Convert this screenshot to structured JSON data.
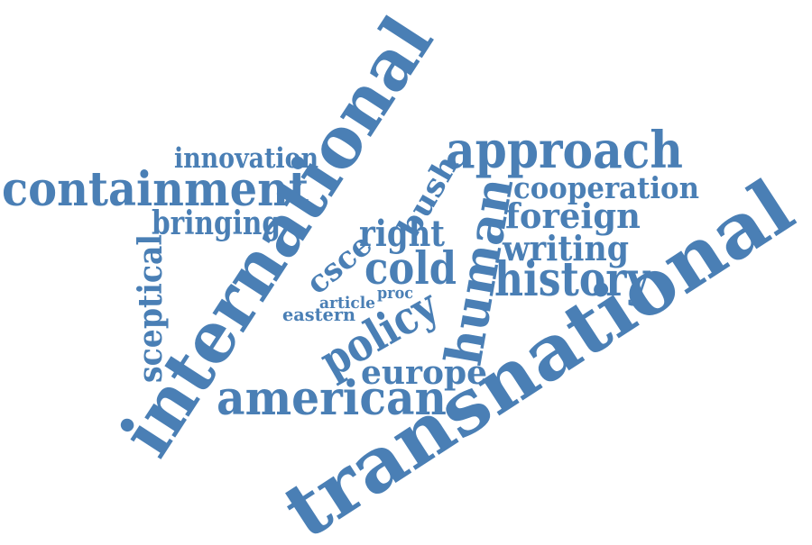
{
  "word_color": "#4a7fb5",
  "words": {
    "transnational": "transnational",
    "international": "international",
    "approach": "approach",
    "containment": "containment",
    "human": "human",
    "history": "history",
    "american": "american",
    "policy": "policy",
    "cold": "cold",
    "foreign": "foreign",
    "right": "right",
    "writing": "writing",
    "bringing": "bringing",
    "cooperation": "cooperation",
    "innovation": "innovation",
    "europe": "europe",
    "sceptical": "sceptical",
    "bush": "bush",
    "csce": "csce",
    "eastern": "eastern",
    "article": "article",
    "proc": "proc"
  }
}
